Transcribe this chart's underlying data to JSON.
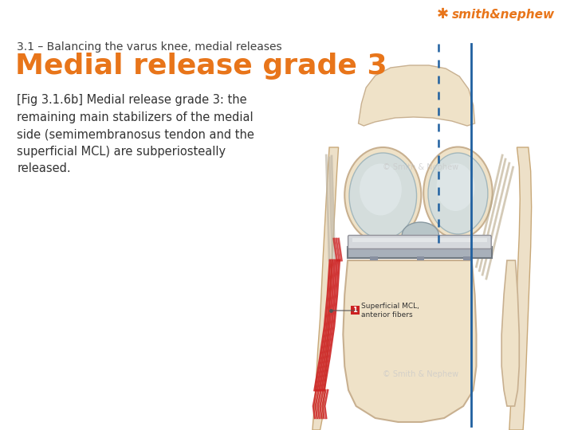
{
  "background_color": "#ffffff",
  "subtitle": "3.1 – Balancing the varus knee, medial releases",
  "title": "Medial release grade 3",
  "subtitle_color": "#404040",
  "title_color": "#E8751A",
  "body_text": "[Fig 3.1.6b] Medial release grade 3: the\nremaining main stabilizers of the medial\nside (semimembranosus tendon and the\nsuperficial MCL) are subperiosteally\nreleased.",
  "body_color": "#333333",
  "brand_color": "#E8751A",
  "brand_text": "smith&nephew",
  "subtitle_fontsize": 10,
  "title_fontsize": 26,
  "body_fontsize": 10.5,
  "brand_fontsize": 11,
  "fig_width": 7.2,
  "fig_height": 5.4,
  "bone_color": "#EFE2C8",
  "bone_edge": "#C8B090",
  "cartilage_color": "#D0DDE0",
  "cartilage_edge": "#98B0B8",
  "metal_color": "#A8B0BA",
  "metal_edge": "#707880",
  "insert_color": "#D5D8DC",
  "red_color": "#CC2222",
  "blue_color": "#2060A0",
  "soft_color": "#EDE0C8",
  "soft_edge": "#C8A878",
  "watermark_color": "#C8C8C8",
  "label_color": "#333333"
}
